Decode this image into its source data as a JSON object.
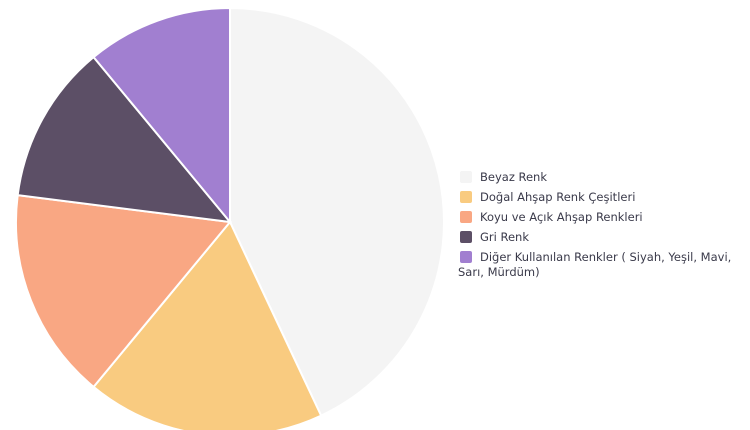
{
  "chart_data": {
    "type": "pie",
    "title": "",
    "legend_position": "right",
    "slices": [
      {
        "label": "Beyaz Renk",
        "value": 43,
        "color": "#f4f4f4"
      },
      {
        "label": "Doğal Ahşap Renk Çeşitleri",
        "value": 18,
        "color": "#f9cb80"
      },
      {
        "label": "Koyu ve Açık Ahşap Renkleri",
        "value": 16,
        "color": "#f9a783"
      },
      {
        "label": "Gri Renk",
        "value": 12,
        "color": "#5c4f66"
      },
      {
        "label": "Diğer Kullanılan Renkler ( Siyah, Yeşil, Mavi, Sarı, Mürdüm)",
        "value": 11,
        "color": "#a17fd0"
      }
    ]
  }
}
